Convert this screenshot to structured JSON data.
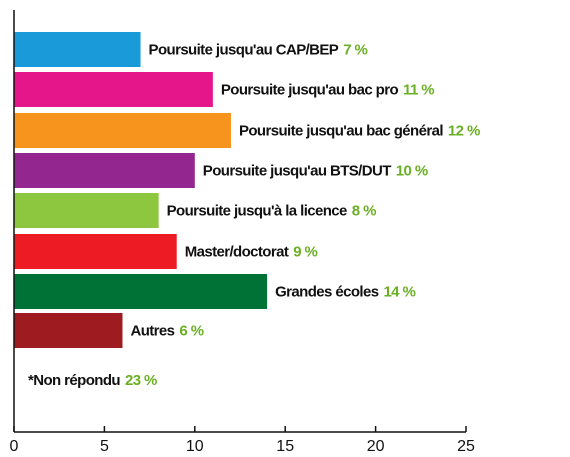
{
  "chart_data": {
    "type": "bar",
    "orientation": "horizontal",
    "categories": [
      "Poursuite jusqu'au CAP/BEP",
      "Poursuite jusqu'au bac pro",
      "Poursuite jusqu'au bac général",
      "Poursuite jusqu'au BTS/DUT",
      "Poursuite jusqu'à la licence",
      "Master/doctorat",
      "Grandes écoles",
      "Autres"
    ],
    "values": [
      7,
      11,
      12,
      10,
      8,
      9,
      14,
      6
    ],
    "value_labels": [
      "7 %",
      "11 %",
      "12 %",
      "10 %",
      "8 %",
      "9 %",
      "14 %",
      "6 %"
    ],
    "colors": [
      "#1a9ad9",
      "#e5168a",
      "#f7941d",
      "#93278f",
      "#8dc63f",
      "#ed1c24",
      "#007236",
      "#9e1b20"
    ],
    "value_label_color": "#6ab023",
    "note": {
      "label": "*Non répondu",
      "value": 23,
      "value_label": "23 %"
    },
    "xlim": [
      0,
      25
    ],
    "xticks": [
      0,
      5,
      10,
      15,
      20,
      25
    ]
  }
}
